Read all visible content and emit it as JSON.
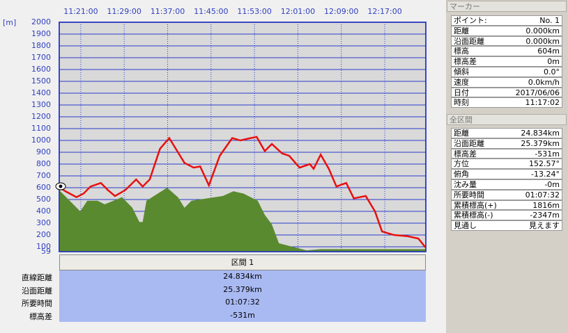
{
  "chart_data": {
    "type": "line",
    "y_label": "[m]",
    "xlim": [
      677.03,
      744.57
    ],
    "xticks": [
      {
        "value": 681,
        "label": "11:21:00"
      },
      {
        "value": 689,
        "label": "11:29:00"
      },
      {
        "value": 697,
        "label": "11:37:00"
      },
      {
        "value": 705,
        "label": "11:45:00"
      },
      {
        "value": 713,
        "label": "11:53:00"
      },
      {
        "value": 721,
        "label": "12:01:00"
      },
      {
        "value": 729,
        "label": "12:09:00"
      },
      {
        "value": 737,
        "label": "12:17:00"
      }
    ],
    "ylim": [
      59,
      2000
    ],
    "yticks": [
      59,
      100,
      200,
      300,
      400,
      500,
      600,
      700,
      800,
      900,
      1000,
      1100,
      1200,
      1300,
      1400,
      1500,
      1600,
      1700,
      1800,
      1900,
      2000
    ],
    "grid": true,
    "series": [
      {
        "color": "#e81010",
        "fill": false,
        "x": [
          677.0,
          678.3,
          680.2,
          681.5,
          682.8,
          684.7,
          686.0,
          687.3,
          689.2,
          691.2,
          692.4,
          693.7,
          695.6,
          697.3,
          698.9,
          700.1,
          701.8,
          703.0,
          704.6,
          706.6,
          708.9,
          710.4,
          712.3,
          713.4,
          714.9,
          716.2,
          718.1,
          719.4,
          721.3,
          723.2,
          723.9,
          725.2,
          726.7,
          728.1,
          729.9,
          731.3,
          733.5,
          735.2,
          736.5,
          738.7,
          741.2,
          743.2,
          744.5
        ],
        "values": [
          604,
          567,
          520,
          550,
          610,
          640,
          580,
          530,
          580,
          670,
          610,
          670,
          930,
          1020,
          900,
          810,
          770,
          780,
          620,
          870,
          1020,
          1000,
          1020,
          1030,
          910,
          970,
          890,
          870,
          770,
          800,
          760,
          880,
          760,
          610,
          640,
          510,
          530,
          400,
          230,
          200,
          190,
          170,
          95
        ]
      },
      {
        "color": "#5a8a30",
        "fill": true,
        "x": [
          677.0,
          680.9,
          682.2,
          684.1,
          685.4,
          688.6,
          690.5,
          691.8,
          692.4,
          693.1,
          696.9,
          698.9,
          700.1,
          701.4,
          707.2,
          709.1,
          711.0,
          713.6,
          714.9,
          716.2,
          717.5,
          720.0,
          722.6,
          725.2,
          730.3,
          735.4,
          740.6,
          744.5
        ],
        "values": [
          580,
          400,
          490,
          490,
          460,
          520,
          430,
          310,
          310,
          490,
          600,
          520,
          430,
          490,
          530,
          570,
          550,
          490,
          370,
          290,
          130,
          100,
          70,
          80,
          80,
          80,
          80,
          80
        ]
      }
    ]
  },
  "table": {
    "header": "区間 1",
    "rows": [
      [
        "直線距離",
        "24.834km"
      ],
      [
        "沿面距離",
        "25.379km"
      ],
      [
        "所要時間",
        "01:07:32"
      ],
      [
        "標高差",
        "-531m"
      ]
    ]
  },
  "marker_panel": {
    "title": "マーカー",
    "rows": [
      [
        "ポイント:",
        "No. 1"
      ],
      [
        "距離",
        "0.000km"
      ],
      [
        "沿面距離",
        "0.000km"
      ],
      [
        "標高",
        "604m"
      ],
      [
        "標高差",
        "0m"
      ],
      [
        "傾斜",
        "0.0°"
      ],
      [
        "速度",
        "0.0km/h"
      ],
      [
        "日付",
        "2017/06/06"
      ],
      [
        "時刻",
        "11:17:02"
      ]
    ]
  },
  "total_panel": {
    "title": "全区間",
    "rows": [
      [
        "距離",
        "24.834km"
      ],
      [
        "沿面距離",
        "25.379km"
      ],
      [
        "標高差",
        "-531m"
      ],
      [
        "方位",
        "152.57°"
      ],
      [
        "俯角",
        "-13.24°"
      ],
      [
        "沈み量",
        "-0m"
      ],
      [
        "所要時間",
        "01:07:32"
      ],
      [
        "累積標高(+)",
        "1816m"
      ],
      [
        "累積標高(-)",
        "-2347m"
      ],
      [
        "見通し",
        "見えます"
      ]
    ]
  }
}
